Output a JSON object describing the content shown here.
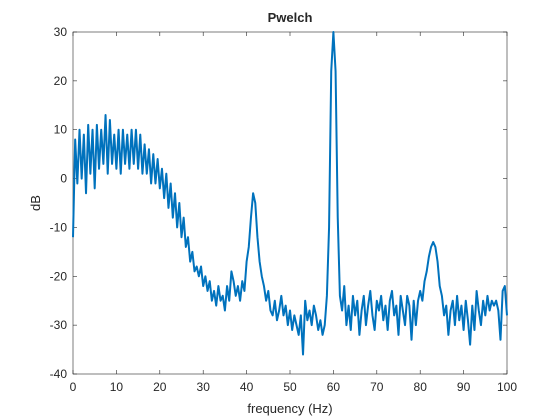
{
  "chart_data": {
    "type": "line",
    "title": "Pwelch",
    "x_label": "frequency (Hz)",
    "y_label": "dB",
    "xlim": [
      0,
      100
    ],
    "ylim": [
      -40,
      30
    ],
    "xticks": [
      0,
      10,
      20,
      30,
      40,
      50,
      60,
      70,
      80,
      90,
      100
    ],
    "yticks": [
      -40,
      -30,
      -20,
      -10,
      0,
      10,
      20,
      30
    ],
    "x": [
      0,
      0.5,
      1,
      1.5,
      2,
      2.5,
      3,
      3.5,
      4,
      4.5,
      5,
      5.5,
      6,
      6.5,
      7,
      7.5,
      8,
      8.5,
      9,
      9.5,
      10,
      10.5,
      11,
      11.5,
      12,
      12.5,
      13,
      13.5,
      14,
      14.5,
      15,
      15.5,
      16,
      16.5,
      17,
      17.5,
      18,
      18.5,
      19,
      19.5,
      20,
      20.5,
      21,
      21.5,
      22,
      22.5,
      23,
      23.5,
      24,
      24.5,
      25,
      25.5,
      26,
      26.5,
      27,
      27.5,
      28,
      28.5,
      29,
      29.5,
      30,
      30.5,
      31,
      31.5,
      32,
      32.5,
      33,
      33.5,
      34,
      34.5,
      35,
      35.5,
      36,
      36.5,
      37,
      37.5,
      38,
      38.5,
      39,
      39.5,
      40,
      40.5,
      41,
      41.5,
      42,
      42.5,
      43,
      43.5,
      44,
      44.5,
      45,
      45.5,
      46,
      46.5,
      47,
      47.5,
      48,
      48.5,
      49,
      49.5,
      50,
      50.5,
      51,
      51.5,
      52,
      52.5,
      53,
      53.5,
      54,
      54.5,
      55,
      55.5,
      56,
      56.5,
      57,
      57.5,
      58,
      58.5,
      59,
      59.5,
      60,
      60.5,
      61,
      61.5,
      62,
      62.5,
      63,
      63.5,
      64,
      64.5,
      65,
      65.5,
      66,
      66.5,
      67,
      67.5,
      68,
      68.5,
      69,
      69.5,
      70,
      70.5,
      71,
      71.5,
      72,
      72.5,
      73,
      73.5,
      74,
      74.5,
      75,
      75.5,
      76,
      76.5,
      77,
      77.5,
      78,
      78.5,
      79,
      79.5,
      80,
      80.5,
      81,
      81.5,
      82,
      82.5,
      83,
      83.5,
      84,
      84.5,
      85,
      85.5,
      86,
      86.5,
      87,
      87.5,
      88,
      88.5,
      89,
      89.5,
      90,
      90.5,
      91,
      91.5,
      92,
      92.5,
      93,
      93.5,
      94,
      94.5,
      95,
      95.5,
      96,
      96.5,
      97,
      97.5,
      98,
      98.5,
      99,
      99.5,
      100
    ],
    "series": [
      {
        "color": "#0072bd",
        "values": [
          -12,
          8,
          -1,
          10,
          0,
          9,
          -3,
          11,
          1,
          10,
          -2,
          11,
          2,
          10,
          3,
          13,
          1,
          12,
          3,
          9,
          2,
          10,
          1,
          10,
          3,
          9,
          2,
          10,
          3,
          10,
          2,
          9,
          1,
          7,
          1,
          6,
          -1,
          5,
          -1,
          4,
          -2,
          2,
          -4,
          1,
          -6,
          -1,
          -8,
          -3,
          -10,
          -5,
          -12,
          -8,
          -14,
          -12,
          -17,
          -15,
          -19,
          -18,
          -20,
          -18,
          -22,
          -20,
          -23,
          -21,
          -25,
          -23,
          -26,
          -22,
          -25,
          -24,
          -27,
          -22,
          -25,
          -19,
          -21,
          -24,
          -22,
          -25,
          -21,
          -23,
          -17,
          -14,
          -8,
          -3,
          -5,
          -12,
          -17,
          -20,
          -22,
          -25,
          -23,
          -27,
          -28,
          -25,
          -29,
          -27,
          -24,
          -28,
          -26,
          -30,
          -27,
          -31,
          -28,
          -30,
          -32,
          -28,
          -36,
          -25,
          -29,
          -27,
          -30,
          -26,
          -28,
          -31,
          -29,
          -32,
          -30,
          -24,
          -10,
          22,
          30,
          22,
          -8,
          -24,
          -27,
          -22,
          -30,
          -26,
          -31,
          -24,
          -28,
          -25,
          -32,
          -27,
          -24,
          -30,
          -26,
          -23,
          -28,
          -31,
          -25,
          -27,
          -24,
          -29,
          -26,
          -31,
          -25,
          -23,
          -28,
          -26,
          -32,
          -24,
          -27,
          -30,
          -24,
          -26,
          -33,
          -25,
          -30,
          -25,
          -23,
          -25,
          -21,
          -19,
          -16,
          -14,
          -13,
          -14,
          -17,
          -22,
          -24,
          -28,
          -26,
          -32,
          -27,
          -25,
          -30,
          -24,
          -29,
          -26,
          -31,
          -25,
          -29,
          -34,
          -26,
          -31,
          -23,
          -27,
          -30,
          -25,
          -28,
          -24,
          -27,
          -25,
          -26,
          -25,
          -27,
          -33,
          -23,
          -22,
          -28
        ]
      }
    ]
  }
}
